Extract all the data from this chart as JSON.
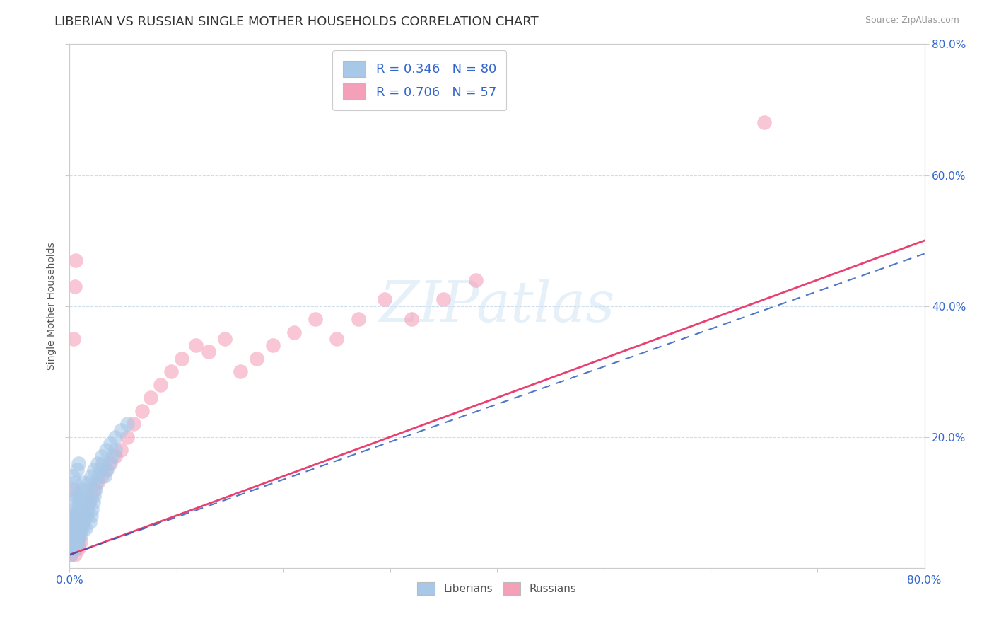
{
  "title": "LIBERIAN VS RUSSIAN SINGLE MOTHER HOUSEHOLDS CORRELATION CHART",
  "source_text": "Source: ZipAtlas.com",
  "ylabel": "Single Mother Households",
  "xlim": [
    0.0,
    0.8
  ],
  "ylim": [
    0.0,
    0.8
  ],
  "liberian_color": "#a8c8e8",
  "russian_color": "#f4a0b8",
  "liberian_line_color": "#2255bb",
  "russian_line_color": "#e84070",
  "liberian_R": 0.346,
  "liberian_N": 80,
  "russian_R": 0.706,
  "russian_N": 57,
  "watermark": "ZIPatlas",
  "background_color": "#ffffff",
  "grid_color": "#ccddee",
  "title_fontsize": 13,
  "axis_label_fontsize": 10,
  "tick_fontsize": 11,
  "lib_line_x0": 0.0,
  "lib_line_y0": 0.02,
  "lib_line_x1": 0.8,
  "lib_line_y1": 0.48,
  "rus_line_x0": 0.0,
  "rus_line_y0": 0.02,
  "rus_line_x1": 0.8,
  "rus_line_y1": 0.5,
  "liberian_x": [
    0.001,
    0.002,
    0.002,
    0.003,
    0.003,
    0.003,
    0.004,
    0.004,
    0.005,
    0.005,
    0.005,
    0.006,
    0.006,
    0.007,
    0.007,
    0.007,
    0.008,
    0.008,
    0.008,
    0.009,
    0.009,
    0.01,
    0.01,
    0.011,
    0.011,
    0.012,
    0.012,
    0.013,
    0.013,
    0.014,
    0.015,
    0.015,
    0.016,
    0.017,
    0.018,
    0.019,
    0.02,
    0.021,
    0.022,
    0.023,
    0.024,
    0.025,
    0.027,
    0.029,
    0.031,
    0.033,
    0.035,
    0.037,
    0.04,
    0.043,
    0.001,
    0.002,
    0.002,
    0.003,
    0.003,
    0.004,
    0.004,
    0.005,
    0.005,
    0.006,
    0.006,
    0.007,
    0.008,
    0.008,
    0.009,
    0.01,
    0.011,
    0.012,
    0.014,
    0.016,
    0.018,
    0.02,
    0.023,
    0.026,
    0.03,
    0.034,
    0.038,
    0.043,
    0.048,
    0.054
  ],
  "liberian_y": [
    0.04,
    0.05,
    0.08,
    0.06,
    0.1,
    0.14,
    0.07,
    0.12,
    0.05,
    0.09,
    0.13,
    0.06,
    0.11,
    0.04,
    0.08,
    0.15,
    0.05,
    0.1,
    0.16,
    0.06,
    0.11,
    0.05,
    0.09,
    0.07,
    0.12,
    0.06,
    0.1,
    0.07,
    0.13,
    0.08,
    0.06,
    0.11,
    0.08,
    0.09,
    0.1,
    0.07,
    0.08,
    0.09,
    0.1,
    0.11,
    0.12,
    0.13,
    0.14,
    0.15,
    0.16,
    0.14,
    0.15,
    0.16,
    0.17,
    0.18,
    0.02,
    0.03,
    0.05,
    0.04,
    0.07,
    0.03,
    0.06,
    0.03,
    0.07,
    0.04,
    0.08,
    0.05,
    0.04,
    0.09,
    0.05,
    0.06,
    0.07,
    0.08,
    0.1,
    0.12,
    0.13,
    0.14,
    0.15,
    0.16,
    0.17,
    0.18,
    0.19,
    0.2,
    0.21,
    0.22
  ],
  "russian_x": [
    0.001,
    0.002,
    0.002,
    0.003,
    0.003,
    0.004,
    0.004,
    0.005,
    0.005,
    0.006,
    0.006,
    0.007,
    0.008,
    0.009,
    0.01,
    0.011,
    0.012,
    0.014,
    0.016,
    0.018,
    0.02,
    0.023,
    0.026,
    0.03,
    0.034,
    0.038,
    0.043,
    0.048,
    0.054,
    0.06,
    0.068,
    0.076,
    0.085,
    0.095,
    0.105,
    0.118,
    0.13,
    0.145,
    0.16,
    0.175,
    0.19,
    0.21,
    0.23,
    0.25,
    0.27,
    0.295,
    0.32,
    0.35,
    0.38,
    0.002,
    0.003,
    0.004,
    0.005,
    0.006,
    0.008,
    0.01,
    0.65
  ],
  "russian_y": [
    0.02,
    0.03,
    0.05,
    0.04,
    0.06,
    0.03,
    0.05,
    0.02,
    0.04,
    0.03,
    0.05,
    0.04,
    0.05,
    0.06,
    0.06,
    0.07,
    0.07,
    0.08,
    0.09,
    0.1,
    0.11,
    0.12,
    0.13,
    0.14,
    0.15,
    0.16,
    0.17,
    0.18,
    0.2,
    0.22,
    0.24,
    0.26,
    0.28,
    0.3,
    0.32,
    0.34,
    0.33,
    0.35,
    0.3,
    0.32,
    0.34,
    0.36,
    0.38,
    0.35,
    0.38,
    0.41,
    0.38,
    0.41,
    0.44,
    0.08,
    0.12,
    0.35,
    0.43,
    0.47,
    0.03,
    0.04,
    0.68
  ]
}
